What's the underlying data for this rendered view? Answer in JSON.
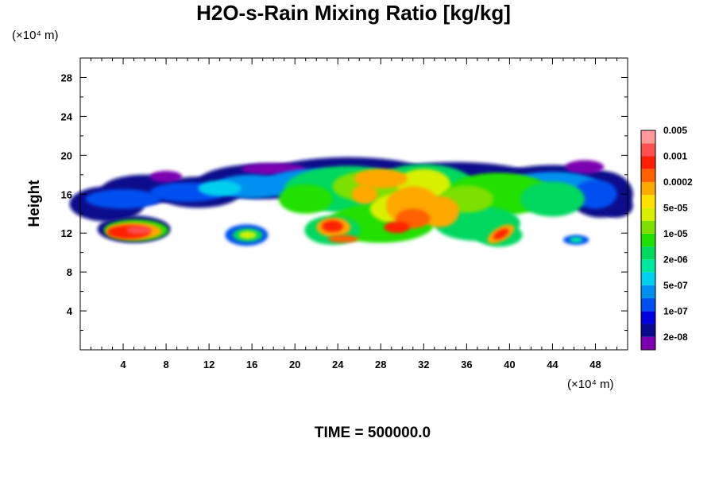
{
  "chart_data": {
    "type": "heatmap",
    "title": "H2O-s-Rain Mixing Ratio [kg/kg]",
    "ylabel": "Height",
    "x_unit": "(×10⁴ m)",
    "y_unit": "(×10⁴ m)",
    "xlim": [
      0,
      51
    ],
    "ylim": [
      0,
      30
    ],
    "x_ticks": [
      4,
      8,
      12,
      16,
      20,
      24,
      28,
      32,
      36,
      40,
      44,
      48
    ],
    "y_ticks": [
      4,
      8,
      12,
      16,
      20,
      24,
      28
    ],
    "x_tick_labels": [
      "4",
      "8",
      "12",
      "16",
      "20",
      "24",
      "28",
      "32",
      "36",
      "40",
      "44",
      "48"
    ],
    "y_tick_labels": [
      "4",
      "8",
      "12",
      "16",
      "20",
      "24",
      "28"
    ],
    "legend": {
      "placement": "right",
      "colors": [
        "#7a00b0",
        "#0a0a8c",
        "#0000e0",
        "#0050f0",
        "#0090f0",
        "#00d0f0",
        "#00e8a0",
        "#00d860",
        "#20e000",
        "#7ce000",
        "#d8f000",
        "#ffe000",
        "#ffa800",
        "#ff6000",
        "#ff2000",
        "#ff5050",
        "#ff9898"
      ],
      "labels": [
        "2e-08",
        "1e-07",
        "5e-07",
        "2e-06",
        "1e-05",
        "5e-05",
        "0.0002",
        "0.001",
        "0.005"
      ]
    },
    "time_label": "TIME = 500000.0",
    "regions": [
      {
        "x": [
          0,
          51
        ],
        "y": [
          13.5,
          19
        ],
        "level": "1e-07"
      },
      {
        "x": [
          2,
          9
        ],
        "y": [
          10.8,
          13.8
        ],
        "level": "2e-08"
      },
      {
        "x": [
          14,
          18
        ],
        "y": [
          10.5,
          12.8
        ],
        "level": "5e-07"
      },
      {
        "x": [
          20,
          32
        ],
        "y": [
          10.5,
          19.5
        ],
        "level": "2e-05"
      },
      {
        "x": [
          34,
          42
        ],
        "y": [
          10,
          18
        ],
        "level": "2e-05"
      },
      {
        "x": [
          22,
          36
        ],
        "y": [
          13,
          18.5
        ],
        "level": "2e-04"
      },
      {
        "x": [
          28,
          34
        ],
        "y": [
          11.5,
          16
        ],
        "level": "0.001"
      },
      {
        "x": [
          3,
          8
        ],
        "y": [
          11.3,
          13
        ],
        "level": "0.003"
      },
      {
        "x": [
          22.5,
          25
        ],
        "y": [
          11.5,
          13.5
        ],
        "level": "0.001"
      },
      {
        "x": [
          38,
          41
        ],
        "y": [
          10.8,
          12.5
        ],
        "level": "0.001"
      },
      {
        "x": [
          45,
          47.5
        ],
        "y": [
          10.8,
          11.8
        ],
        "level": "5e-07"
      }
    ]
  }
}
